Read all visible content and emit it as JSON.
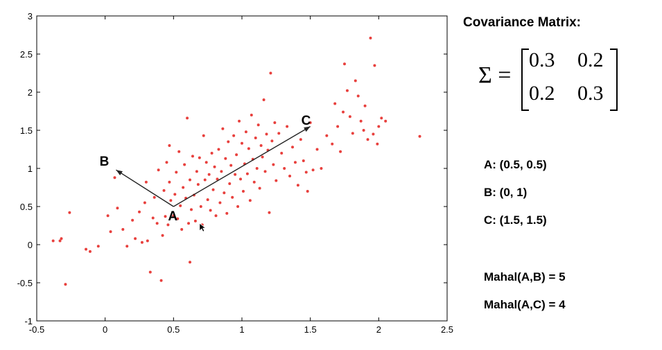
{
  "chart_data": {
    "type": "scatter",
    "title": "",
    "xlabel": "",
    "ylabel": "",
    "xlim": [
      -0.5,
      2.5
    ],
    "ylim": [
      -1,
      3
    ],
    "xticks": [
      "-0.5",
      "0",
      "0.5",
      "1",
      "1.5",
      "2",
      "2.5"
    ],
    "yticks": [
      "-1",
      "-0.5",
      "0",
      "0.5",
      "1",
      "1.5",
      "2",
      "2.5",
      "3"
    ],
    "grid": false,
    "marker_color": "#e8403d",
    "points": [
      [
        -0.38,
        0.05
      ],
      [
        -0.33,
        0.05
      ],
      [
        -0.32,
        0.08
      ],
      [
        -0.29,
        -0.52
      ],
      [
        -0.26,
        0.42
      ],
      [
        -0.14,
        -0.06
      ],
      [
        -0.11,
        -0.09
      ],
      [
        -0.05,
        -0.02
      ],
      [
        0.02,
        0.38
      ],
      [
        0.04,
        0.17
      ],
      [
        0.07,
        0.88
      ],
      [
        0.09,
        0.48
      ],
      [
        0.13,
        0.2
      ],
      [
        0.16,
        -0.02
      ],
      [
        0.2,
        0.32
      ],
      [
        0.22,
        0.08
      ],
      [
        0.25,
        0.43
      ],
      [
        0.27,
        0.03
      ],
      [
        0.29,
        0.55
      ],
      [
        0.3,
        0.82
      ],
      [
        0.31,
        0.05
      ],
      [
        0.33,
        -0.36
      ],
      [
        0.35,
        0.35
      ],
      [
        0.36,
        0.62
      ],
      [
        0.38,
        0.28
      ],
      [
        0.39,
        0.98
      ],
      [
        0.41,
        -0.47
      ],
      [
        0.42,
        0.12
      ],
      [
        0.43,
        0.71
      ],
      [
        0.44,
        0.37
      ],
      [
        0.45,
        1.08
      ],
      [
        0.46,
        0.26
      ],
      [
        0.47,
        0.82
      ],
      [
        0.47,
        1.3
      ],
      [
        0.48,
        0.58
      ],
      [
        0.5,
        0.38
      ],
      [
        0.51,
        0.66
      ],
      [
        0.52,
        0.95
      ],
      [
        0.53,
        0.34
      ],
      [
        0.54,
        1.22
      ],
      [
        0.55,
        0.51
      ],
      [
        0.56,
        0.2
      ],
      [
        0.57,
        0.75
      ],
      [
        0.58,
        1.05
      ],
      [
        0.59,
        0.61
      ],
      [
        0.6,
        1.66
      ],
      [
        0.61,
        0.28
      ],
      [
        0.62,
        -0.23
      ],
      [
        0.62,
        0.85
      ],
      [
        0.63,
        0.46
      ],
      [
        0.64,
        1.16
      ],
      [
        0.65,
        0.65
      ],
      [
        0.66,
        0.31
      ],
      [
        0.67,
        0.96
      ],
      [
        0.68,
        0.79
      ],
      [
        0.69,
        1.14
      ],
      [
        0.7,
        0.5
      ],
      [
        0.71,
        0.26
      ],
      [
        0.72,
        1.43
      ],
      [
        0.73,
        0.85
      ],
      [
        0.74,
        1.08
      ],
      [
        0.75,
        0.59
      ],
      [
        0.76,
        0.92
      ],
      [
        0.77,
        0.45
      ],
      [
        0.78,
        1.2
      ],
      [
        0.79,
        0.72
      ],
      [
        0.8,
        1.02
      ],
      [
        0.81,
        0.38
      ],
      [
        0.82,
        0.86
      ],
      [
        0.83,
        1.25
      ],
      [
        0.84,
        0.55
      ],
      [
        0.85,
        0.96
      ],
      [
        0.86,
        1.52
      ],
      [
        0.87,
        0.68
      ],
      [
        0.88,
        1.13
      ],
      [
        0.89,
        0.41
      ],
      [
        0.9,
        1.35
      ],
      [
        0.91,
        0.8
      ],
      [
        0.92,
        1.04
      ],
      [
        0.93,
        0.62
      ],
      [
        0.94,
        1.43
      ],
      [
        0.95,
        0.92
      ],
      [
        0.96,
        1.18
      ],
      [
        0.97,
        0.5
      ],
      [
        0.98,
        1.62
      ],
      [
        0.99,
        0.86
      ],
      [
        1.0,
        1.33
      ],
      [
        1.01,
        0.7
      ],
      [
        1.02,
        1.06
      ],
      [
        1.03,
        1.48
      ],
      [
        1.04,
        0.93
      ],
      [
        1.05,
        1.26
      ],
      [
        1.06,
        0.58
      ],
      [
        1.07,
        1.7
      ],
      [
        1.08,
        1.12
      ],
      [
        1.09,
        0.82
      ],
      [
        1.1,
        1.4
      ],
      [
        1.11,
        1.0
      ],
      [
        1.12,
        1.57
      ],
      [
        1.13,
        0.74
      ],
      [
        1.14,
        1.3
      ],
      [
        1.15,
        1.15
      ],
      [
        1.16,
        1.9
      ],
      [
        1.17,
        0.96
      ],
      [
        1.18,
        1.45
      ],
      [
        1.19,
        1.24
      ],
      [
        1.2,
        0.42
      ],
      [
        1.21,
        2.25
      ],
      [
        1.22,
        1.36
      ],
      [
        1.23,
        1.05
      ],
      [
        1.24,
        1.6
      ],
      [
        1.25,
        0.84
      ],
      [
        1.27,
        1.46
      ],
      [
        1.29,
        1.2
      ],
      [
        1.31,
        1.0
      ],
      [
        1.33,
        1.55
      ],
      [
        1.35,
        0.9
      ],
      [
        1.37,
        1.28
      ],
      [
        1.39,
        1.08
      ],
      [
        1.41,
        0.78
      ],
      [
        1.43,
        1.38
      ],
      [
        1.45,
        1.1
      ],
      [
        1.47,
        0.95
      ],
      [
        1.5,
        1.6
      ],
      [
        1.55,
        1.25
      ],
      [
        1.58,
        1.0
      ],
      [
        1.62,
        1.43
      ],
      [
        1.66,
        1.32
      ],
      [
        1.68,
        1.85
      ],
      [
        1.7,
        1.55
      ],
      [
        1.72,
        1.22
      ],
      [
        1.74,
        1.74
      ],
      [
        1.75,
        2.37
      ],
      [
        1.77,
        2.02
      ],
      [
        1.79,
        1.68
      ],
      [
        1.81,
        1.46
      ],
      [
        1.83,
        2.15
      ],
      [
        1.85,
        1.95
      ],
      [
        1.87,
        1.62
      ],
      [
        1.89,
        1.5
      ],
      [
        1.9,
        1.82
      ],
      [
        1.92,
        1.38
      ],
      [
        1.94,
        2.71
      ],
      [
        1.96,
        1.45
      ],
      [
        1.97,
        2.35
      ],
      [
        1.99,
        1.32
      ],
      [
        2.0,
        1.55
      ],
      [
        2.02,
        1.66
      ],
      [
        2.05,
        1.62
      ],
      [
        2.3,
        1.42
      ],
      [
        1.48,
        0.7
      ],
      [
        1.52,
        0.98
      ]
    ],
    "vectors": [
      {
        "label": "B",
        "from": [
          0.5,
          0.5
        ],
        "to": [
          0.08,
          0.98
        ]
      },
      {
        "label": "C",
        "from": [
          0.5,
          0.5
        ],
        "to": [
          1.5,
          1.55
        ]
      }
    ],
    "point_labels": [
      {
        "label": "A",
        "x": 0.5,
        "y": 0.5
      },
      {
        "label": "B",
        "x": 0.0,
        "y": 1.0
      },
      {
        "label": "C",
        "x": 1.5,
        "y": 1.5
      }
    ],
    "cursor": {
      "x": 0.69,
      "y": 0.28
    }
  },
  "side_panel": {
    "heading": "Covariance Matrix:",
    "sigma_label": "Σ =",
    "matrix": [
      [
        "0.3",
        "0.2"
      ],
      [
        "0.2",
        "0.3"
      ]
    ],
    "point_a": "A: (0.5, 0.5)",
    "point_b": "B: (0, 1)",
    "point_c": "C: (1.5, 1.5)",
    "mahal_ab": "Mahal(A,B) = 5",
    "mahal_ac": "Mahal(A,C) = 4"
  }
}
